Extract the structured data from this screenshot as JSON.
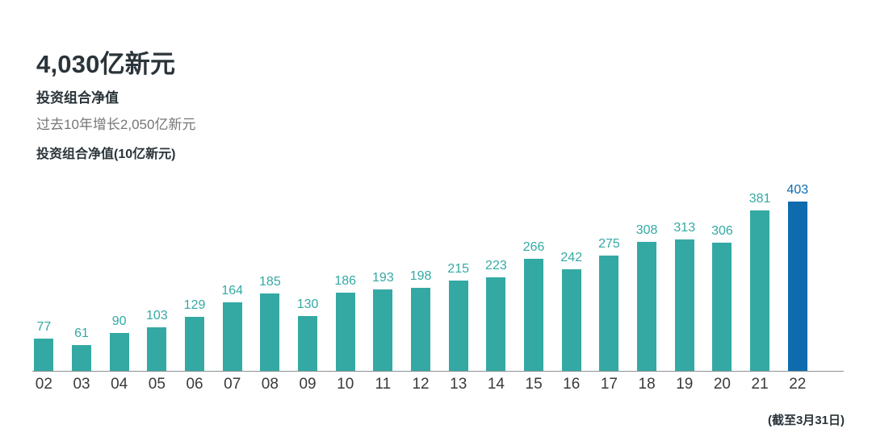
{
  "header": {
    "title": "4,030亿新元",
    "subtitle": "投资组合净值",
    "growth_note": "过去10年增长2,050亿新元"
  },
  "chart_data": {
    "type": "bar",
    "title": "投资组合净值(10亿新元)",
    "categories": [
      "02",
      "03",
      "04",
      "05",
      "06",
      "07",
      "08",
      "09",
      "10",
      "11",
      "12",
      "13",
      "14",
      "15",
      "16",
      "17",
      "18",
      "19",
      "20",
      "21",
      "22"
    ],
    "values": [
      77,
      61,
      90,
      103,
      129,
      164,
      185,
      130,
      186,
      193,
      198,
      215,
      223,
      266,
      242,
      275,
      308,
      313,
      306,
      381,
      403
    ],
    "xlabel": "",
    "ylabel": "投资组合净值(10亿新元)",
    "ylim": [
      0,
      420
    ],
    "grid": false,
    "legend": false,
    "data_labels": true,
    "bar_color": "#34a9a4",
    "highlight_color": "#0e6bae",
    "highlight_index": 20,
    "annotation": "(截至3月31日)"
  },
  "colors": {
    "heading_text": "#2a343a",
    "muted_text": "#767676",
    "axis_line": "#8b9194",
    "tick_text": "#3a3a3a",
    "background": "#ffffff"
  }
}
